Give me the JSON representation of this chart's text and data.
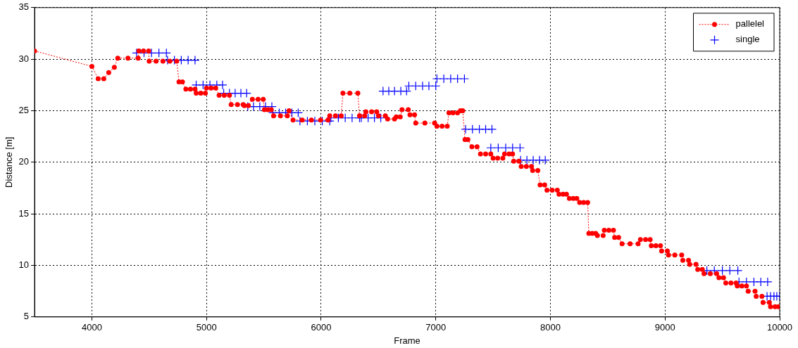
{
  "chart_data": {
    "type": "line",
    "xlabel": "Frame",
    "ylabel": "Distance [m]",
    "xlim": [
      3500,
      10000
    ],
    "xticks": [
      4000,
      5000,
      6000,
      7000,
      8000,
      9000,
      10000
    ],
    "ylim": [
      5,
      35
    ],
    "yticks": [
      5,
      10,
      15,
      20,
      25,
      30,
      35
    ],
    "grid": true,
    "legend": "top right",
    "series": [
      {
        "name": "pallelel",
        "type": "line",
        "color": "#ff0000",
        "marker": "circle",
        "line_style": "dotted",
        "x": [
          3500,
          4000,
          4055,
          4104,
          4147,
          4196,
          4226,
          4315,
          4404,
          4410,
          4450,
          4495,
          4500,
          4560,
          4620,
          4680,
          4740,
          4760,
          4790,
          4820,
          4860,
          4900,
          4910,
          4950,
          4990,
          5000,
          5040,
          5080,
          5110,
          5155,
          5200,
          5215,
          5270,
          5320,
          5330,
          5365,
          5400,
          5450,
          5495,
          5505,
          5535,
          5565,
          5585,
          5645,
          5705,
          5720,
          5755,
          5835,
          5915,
          5995,
          6060,
          6075,
          6125,
          6175,
          6190,
          6250,
          6320,
          6335,
          6380,
          6390,
          6440,
          6485,
          6500,
          6560,
          6580,
          6640,
          6655,
          6690,
          6705,
          6760,
          6775,
          6815,
          6825,
          6905,
          6990,
          7010,
          7055,
          7100,
          7115,
          7150,
          7190,
          7215,
          7235,
          7255,
          7280,
          7315,
          7360,
          7390,
          7435,
          7480,
          7500,
          7540,
          7585,
          7600,
          7640,
          7670,
          7680,
          7725,
          7745,
          7790,
          7835,
          7845,
          7890,
          7910,
          7950,
          7970,
          8015,
          8060,
          8075,
          8110,
          8140,
          8165,
          8200,
          8230,
          8255,
          8290,
          8325,
          8335,
          8365,
          8395,
          8410,
          8460,
          8470,
          8510,
          8550,
          8560,
          8595,
          8625,
          8695,
          8765,
          8785,
          8830,
          8870,
          8880,
          8920,
          8960,
          8970,
          9020,
          9030,
          9085,
          9145,
          9155,
          9205,
          9215,
          9270,
          9285,
          9325,
          9340,
          9395,
          9450,
          9470,
          9510,
          9530,
          9575,
          9620,
          9630,
          9670,
          9710,
          9725,
          9785,
          9795,
          9845,
          9855,
          9910,
          9920,
          9960,
          9990
        ],
        "values": [
          30.8,
          29.3,
          28.1,
          28.1,
          28.7,
          29.2,
          30.1,
          30.1,
          30.1,
          30.8,
          30.8,
          30.8,
          29.8,
          29.8,
          29.8,
          29.8,
          29.8,
          27.8,
          27.8,
          27.1,
          27.1,
          27.1,
          26.7,
          26.7,
          26.7,
          27.2,
          27.2,
          27.2,
          26.5,
          26.5,
          26.5,
          25.6,
          25.6,
          25.6,
          25.5,
          25.5,
          26.1,
          26.1,
          26.1,
          25.1,
          25.1,
          25.1,
          24.5,
          24.5,
          24.5,
          25.0,
          24.1,
          24.1,
          24.1,
          24.1,
          24.1,
          24.5,
          24.5,
          24.5,
          26.7,
          26.7,
          26.7,
          24.5,
          24.5,
          24.9,
          24.9,
          24.9,
          24.5,
          24.5,
          24.2,
          24.2,
          24.4,
          24.4,
          25.1,
          25.1,
          24.6,
          24.6,
          23.8,
          23.8,
          23.8,
          23.5,
          23.5,
          23.5,
          24.8,
          24.8,
          24.8,
          25.0,
          25.0,
          22.2,
          22.2,
          21.5,
          21.5,
          20.8,
          20.8,
          20.8,
          20.4,
          20.4,
          20.4,
          20.8,
          20.8,
          20.8,
          20.1,
          20.1,
          19.6,
          19.6,
          19.6,
          19.2,
          19.2,
          17.8,
          17.8,
          17.3,
          17.3,
          17.3,
          16.9,
          16.9,
          16.9,
          16.5,
          16.5,
          16.5,
          16.1,
          16.1,
          16.1,
          13.1,
          13.1,
          13.1,
          12.9,
          12.9,
          13.4,
          13.4,
          13.4,
          12.7,
          12.7,
          12.1,
          12.1,
          12.1,
          12.5,
          12.5,
          12.5,
          11.9,
          11.9,
          11.9,
          11.4,
          11.4,
          11.0,
          11.0,
          11.0,
          10.5,
          10.5,
          10.1,
          10.1,
          9.6,
          9.6,
          9.2,
          9.2,
          9.2,
          8.8,
          8.8,
          8.3,
          8.3,
          8.3,
          8.0,
          8.0,
          8.0,
          7.5,
          7.5,
          7.0,
          7.0,
          6.4,
          6.4,
          6.0,
          6.0,
          6.0
        ]
      },
      {
        "name": "single",
        "type": "scatter",
        "color": "#0000ff",
        "marker": "cross",
        "x": [
          4390,
          4455,
          4520,
          4585,
          4650,
          4660,
          4720,
          4780,
          4840,
          4900,
          4910,
          4970,
          5030,
          5090,
          5140,
          5150,
          5200,
          5250,
          5300,
          5350,
          5360,
          5410,
          5465,
          5515,
          5570,
          5580,
          5635,
          5690,
          5745,
          5800,
          5815,
          5880,
          5945,
          6010,
          6075,
          6085,
          6150,
          6210,
          6270,
          6335,
          6350,
          6410,
          6465,
          6520,
          6540,
          6590,
          6640,
          6695,
          6745,
          6765,
          6825,
          6885,
          6940,
          7000,
          7010,
          7070,
          7130,
          7190,
          7250,
          7260,
          7320,
          7380,
          7435,
          7490,
          7480,
          7545,
          7610,
          7670,
          7735,
          7740,
          7795,
          7850,
          7905,
          7955,
          9365,
          9430,
          9500,
          9565,
          9635,
          9645,
          9710,
          9775,
          9835,
          9895,
          9890,
          9920,
          9950,
          9975,
          10000
        ],
        "values": [
          30.6,
          30.6,
          30.6,
          30.6,
          30.6,
          29.9,
          29.9,
          29.9,
          29.9,
          29.9,
          27.5,
          27.5,
          27.5,
          27.5,
          27.5,
          26.7,
          26.7,
          26.7,
          26.7,
          26.7,
          25.4,
          25.4,
          25.4,
          25.4,
          25.4,
          24.8,
          24.8,
          24.8,
          24.8,
          24.8,
          24.0,
          24.0,
          24.0,
          24.0,
          24.0,
          24.3,
          24.3,
          24.3,
          24.3,
          24.3,
          24.3,
          24.3,
          24.3,
          24.3,
          26.9,
          26.9,
          26.9,
          26.9,
          26.9,
          27.4,
          27.4,
          27.4,
          27.4,
          27.4,
          28.1,
          28.1,
          28.1,
          28.1,
          28.1,
          23.2,
          23.2,
          23.2,
          23.2,
          23.2,
          21.4,
          21.4,
          21.4,
          21.4,
          21.4,
          20.2,
          20.2,
          20.2,
          20.2,
          20.2,
          9.5,
          9.5,
          9.5,
          9.5,
          9.5,
          8.4,
          8.4,
          8.4,
          8.4,
          8.4,
          7.0,
          7.0,
          7.0,
          7.0,
          7.0
        ]
      }
    ]
  }
}
